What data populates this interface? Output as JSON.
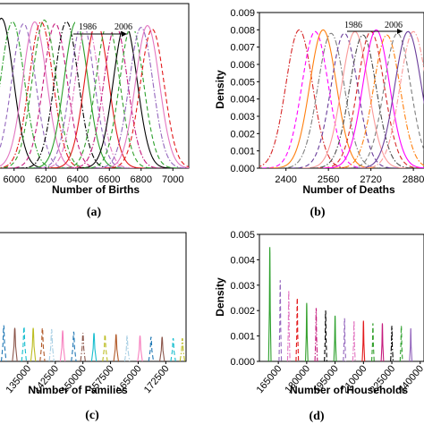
{
  "colors": {
    "series": [
      "#000000",
      "#d62728",
      "#1f77b4",
      "#2ca02c",
      "#ff00ff",
      "#8c564b",
      "#9467bd",
      "#ff7f0e",
      "#17becf",
      "#e377c2",
      "#7f7f7f",
      "#bcbd22",
      "#e31a1c",
      "#6a3d9a",
      "#b15928",
      "#33a02c",
      "#fb9a99",
      "#a6cee3",
      "#c51b7d",
      "#4d4d4d",
      "#f781bf"
    ],
    "frame": "#000000"
  },
  "chart_data": [
    {
      "type": "line",
      "panel": "(a)",
      "xlabel": "Number of Births",
      "ylabel": "",
      "xticks": [
        6000,
        6200,
        6400,
        6600,
        6800,
        7000
      ],
      "xtick_labels": [
        "6000",
        "6200",
        "6400",
        "6600",
        "6800",
        "7000"
      ],
      "xlim": [
        5900,
        7100
      ],
      "ylim": [
        0,
        0.009
      ],
      "annotation": {
        "start": "1986",
        "end": "2006"
      },
      "series": [
        {
          "mean": 5920,
          "sd": 75,
          "peak": 0.0082,
          "dash": "solid"
        },
        {
          "mean": 5990,
          "sd": 75,
          "peak": 0.008,
          "dash": "dashdot"
        },
        {
          "mean": 6060,
          "sd": 75,
          "peak": 0.0079,
          "dash": "dash"
        },
        {
          "mean": 6130,
          "sd": 75,
          "peak": 0.008,
          "dash": "solid"
        },
        {
          "mean": 6170,
          "sd": 75,
          "peak": 0.008,
          "dash": "dashdot"
        },
        {
          "mean": 6190,
          "sd": 75,
          "peak": 0.0081,
          "dash": "dash"
        },
        {
          "mean": 6260,
          "sd": 75,
          "peak": 0.0079,
          "dash": "dash"
        },
        {
          "mean": 6330,
          "sd": 75,
          "peak": 0.008,
          "dash": "dashdot"
        },
        {
          "mean": 6390,
          "sd": 75,
          "peak": 0.008,
          "dash": "solid"
        },
        {
          "mean": 6430,
          "sd": 75,
          "peak": 0.008,
          "dash": "dash"
        },
        {
          "mean": 6460,
          "sd": 75,
          "peak": 0.0079,
          "dash": "dashdot"
        },
        {
          "mean": 6520,
          "sd": 75,
          "peak": 0.008,
          "dash": "solid"
        },
        {
          "mean": 6590,
          "sd": 75,
          "peak": 0.0079,
          "dash": "dash"
        },
        {
          "mean": 6640,
          "sd": 75,
          "peak": 0.0078,
          "dash": "dashdot"
        },
        {
          "mean": 6700,
          "sd": 75,
          "peak": 0.0079,
          "dash": "solid"
        },
        {
          "mean": 6740,
          "sd": 75,
          "peak": 0.0078,
          "dash": "dash"
        },
        {
          "mean": 6800,
          "sd": 75,
          "peak": 0.0077,
          "dash": "dashdot"
        },
        {
          "mean": 6840,
          "sd": 75,
          "peak": 0.0078,
          "dash": "solid"
        },
        {
          "mean": 6870,
          "sd": 75,
          "peak": 0.0076,
          "dash": "dash"
        }
      ]
    },
    {
      "type": "line",
      "panel": "(b)",
      "xlabel": "Number of Deaths",
      "ylabel": "Density",
      "yticks": [
        0,
        0.001,
        0.002,
        0.003,
        0.004,
        0.005,
        0.006,
        0.007,
        0.008,
        0.009
      ],
      "ytick_labels": [
        "0.000",
        "0.001",
        "0.002",
        "0.003",
        "0.004",
        "0.005",
        "0.006",
        "0.007",
        "0.008",
        "0.009"
      ],
      "xticks": [
        2400,
        2560,
        2720,
        2880
      ],
      "xtick_labels": [
        "2400",
        "2560",
        "2720",
        "2880"
      ],
      "xlim": [
        2300,
        2920
      ],
      "ylim": [
        0,
        0.009
      ],
      "annotation": {
        "start": "1986",
        "end": "2006"
      },
      "series": [
        {
          "mean": 2450,
          "sd": 50,
          "peak": 0.008,
          "dash": "dashdot"
        },
        {
          "mean": 2510,
          "sd": 50,
          "peak": 0.0079,
          "dash": "dash"
        },
        {
          "mean": 2540,
          "sd": 50,
          "peak": 0.008,
          "dash": "solid"
        },
        {
          "mean": 2570,
          "sd": 50,
          "peak": 0.0078,
          "dash": "dashdot"
        },
        {
          "mean": 2620,
          "sd": 50,
          "peak": 0.0078,
          "dash": "dash"
        },
        {
          "mean": 2660,
          "sd": 50,
          "peak": 0.0079,
          "dash": "solid"
        },
        {
          "mean": 2690,
          "sd": 50,
          "peak": 0.0077,
          "dash": "dashdot"
        },
        {
          "mean": 2720,
          "sd": 50,
          "peak": 0.0079,
          "dash": "dash"
        },
        {
          "mean": 2740,
          "sd": 50,
          "peak": 0.008,
          "dash": "solid"
        },
        {
          "mean": 2780,
          "sd": 50,
          "peak": 0.0077,
          "dash": "dashdot"
        },
        {
          "mean": 2820,
          "sd": 50,
          "peak": 0.0078,
          "dash": "dash"
        },
        {
          "mean": 2860,
          "sd": 50,
          "peak": 0.0079,
          "dash": "solid"
        },
        {
          "mean": 2880,
          "sd": 50,
          "peak": 0.0079,
          "dash": "dashdot"
        }
      ]
    },
    {
      "type": "line",
      "panel": "(c)",
      "xlabel": "Number of Families",
      "ylabel": "",
      "xticks": [
        135000,
        142500,
        150000,
        157500,
        165000,
        172500
      ],
      "xtick_labels": [
        "135000",
        "142500",
        "150000",
        "157500",
        "165000",
        "172500"
      ],
      "xlim": [
        127000,
        178000
      ],
      "ylim": [
        0,
        0.005
      ],
      "series": [
        {
          "mean": 128500,
          "peak": 0.0014,
          "dash": "dash"
        },
        {
          "mean": 131500,
          "peak": 0.0013,
          "dash": "solid"
        },
        {
          "mean": 134000,
          "peak": 0.00135,
          "dash": "dash"
        },
        {
          "mean": 136500,
          "peak": 0.0013,
          "dash": "solid"
        },
        {
          "mean": 139000,
          "peak": 0.0013,
          "dash": "dash"
        },
        {
          "mean": 141500,
          "peak": 0.00125,
          "dash": "dashdot"
        },
        {
          "mean": 144500,
          "peak": 0.0012,
          "dash": "solid"
        },
        {
          "mean": 147500,
          "peak": 0.00115,
          "dash": "dash"
        },
        {
          "mean": 150000,
          "peak": 0.0011,
          "dash": "dashdot"
        },
        {
          "mean": 153000,
          "peak": 0.0011,
          "dash": "solid"
        },
        {
          "mean": 156000,
          "peak": 0.00105,
          "dash": "dash"
        },
        {
          "mean": 159000,
          "peak": 0.00105,
          "dash": "solid"
        },
        {
          "mean": 162000,
          "peak": 0.001,
          "dash": "dashdot"
        },
        {
          "mean": 165500,
          "peak": 0.001,
          "dash": "solid"
        },
        {
          "mean": 168500,
          "peak": 0.00095,
          "dash": "dash"
        },
        {
          "mean": 171500,
          "peak": 0.00095,
          "dash": "solid"
        },
        {
          "mean": 174500,
          "peak": 0.0009,
          "dash": "dash"
        },
        {
          "mean": 177000,
          "peak": 0.0009,
          "dash": "dashdot"
        }
      ]
    },
    {
      "type": "line",
      "panel": "(d)",
      "xlabel": "Number of Households",
      "ylabel": "Density",
      "yticks": [
        0,
        0.001,
        0.002,
        0.003,
        0.004,
        0.005
      ],
      "ytick_labels": [
        "0.000",
        "0.001",
        "0.002",
        "0.003",
        "0.004",
        "0.005"
      ],
      "xticks": [
        165000,
        180000,
        195000,
        210000,
        225000,
        240000
      ],
      "xtick_labels": [
        "165000",
        "180000",
        "195000",
        "210000",
        "225000",
        "240000"
      ],
      "xlim": [
        155000,
        242000
      ],
      "ylim": [
        0,
        0.005
      ],
      "series": [
        {
          "mean": 160500,
          "peak": 0.0045,
          "dash": "solid"
        },
        {
          "mean": 166000,
          "peak": 0.0032,
          "dash": "dash"
        },
        {
          "mean": 170500,
          "peak": 0.0028,
          "dash": "dashdot"
        },
        {
          "mean": 175000,
          "peak": 0.0025,
          "dash": "dash"
        },
        {
          "mean": 180000,
          "peak": 0.0023,
          "dash": "solid"
        },
        {
          "mean": 185000,
          "peak": 0.0021,
          "dash": "dashdot"
        },
        {
          "mean": 190000,
          "peak": 0.002,
          "dash": "dash"
        },
        {
          "mean": 195000,
          "peak": 0.0018,
          "dash": "solid"
        },
        {
          "mean": 200000,
          "peak": 0.0017,
          "dash": "dash"
        },
        {
          "mean": 205000,
          "peak": 0.0016,
          "dash": "dashdot"
        },
        {
          "mean": 210000,
          "peak": 0.0016,
          "dash": "solid"
        },
        {
          "mean": 215000,
          "peak": 0.0015,
          "dash": "dash"
        },
        {
          "mean": 220000,
          "peak": 0.0015,
          "dash": "solid"
        },
        {
          "mean": 225000,
          "peak": 0.0014,
          "dash": "dashdot"
        },
        {
          "mean": 230000,
          "peak": 0.0014,
          "dash": "dash"
        },
        {
          "mean": 235000,
          "peak": 0.0013,
          "dash": "solid"
        }
      ]
    }
  ]
}
